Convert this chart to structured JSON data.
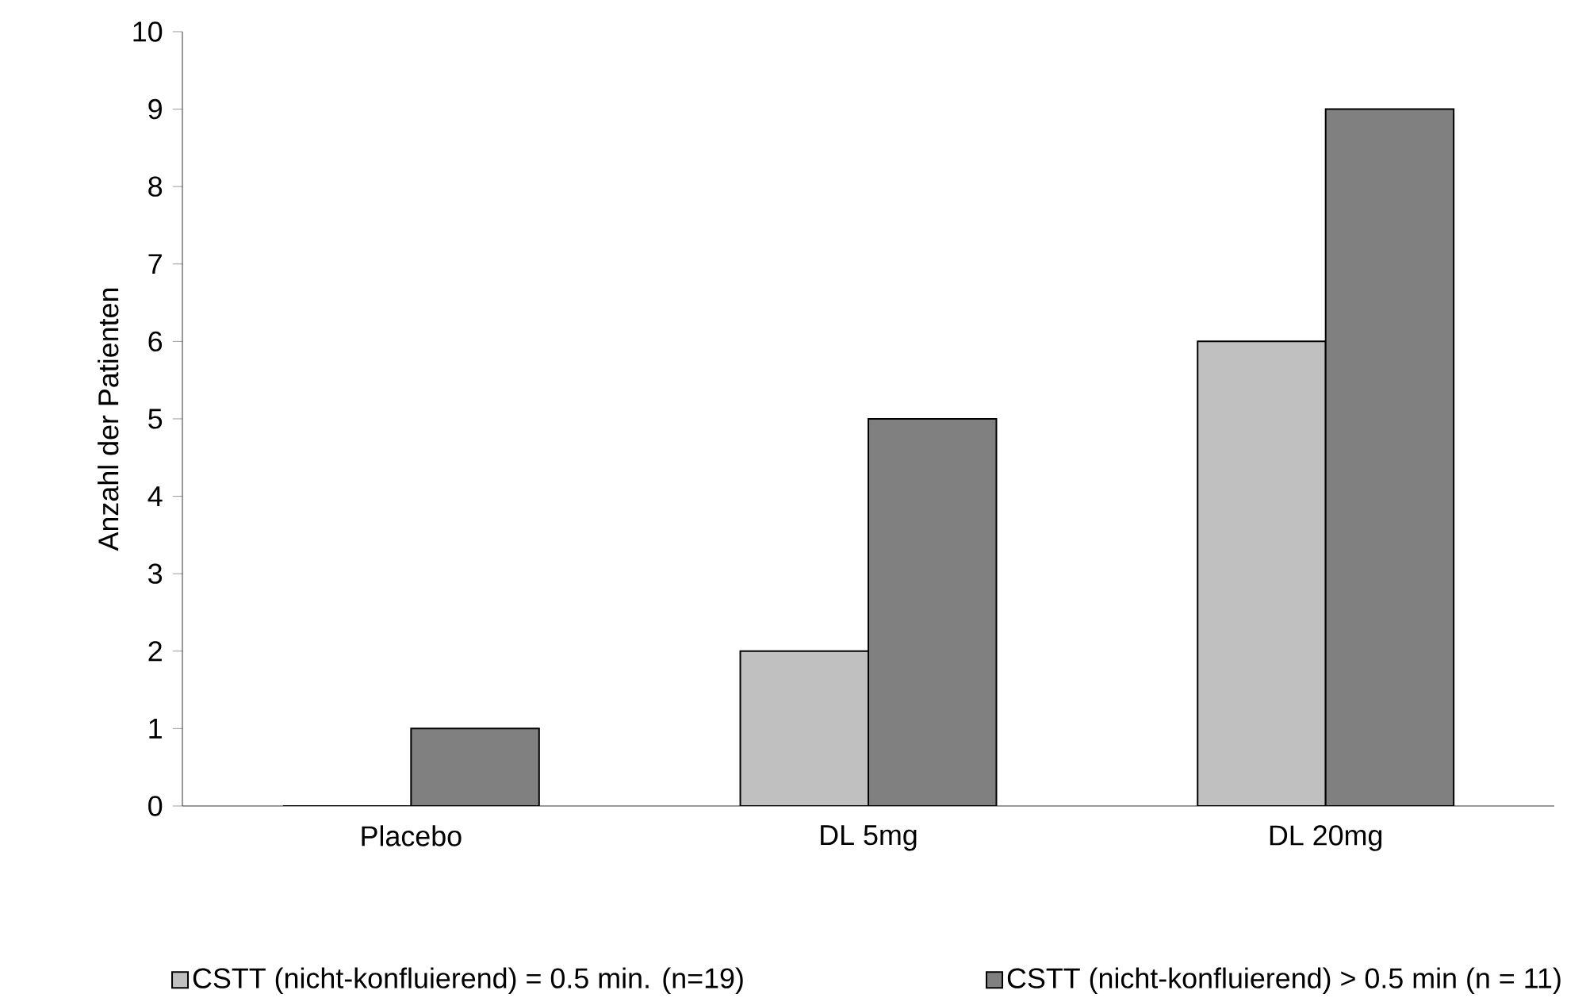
{
  "chart_data": {
    "type": "bar",
    "ylabel": "Anzahl der Patienten",
    "categories": [
      "Placebo",
      "DL 5mg",
      "DL 20mg"
    ],
    "series": [
      {
        "name": "CSTT (nicht-konfluierend) = 0.5 min. (n=19)",
        "color": "#c0c0c0",
        "values": [
          0,
          2,
          6
        ]
      },
      {
        "name": "CSTT (nicht-konfluierend) > 0.5 min (n = 11)",
        "color": "#808080",
        "values": [
          1,
          5,
          9
        ]
      }
    ],
    "ylim": [
      0,
      10
    ],
    "yticks": [
      0,
      1,
      2,
      3,
      4,
      5,
      6,
      7,
      8,
      9,
      10
    ],
    "grid": false,
    "legend": "bottom"
  }
}
